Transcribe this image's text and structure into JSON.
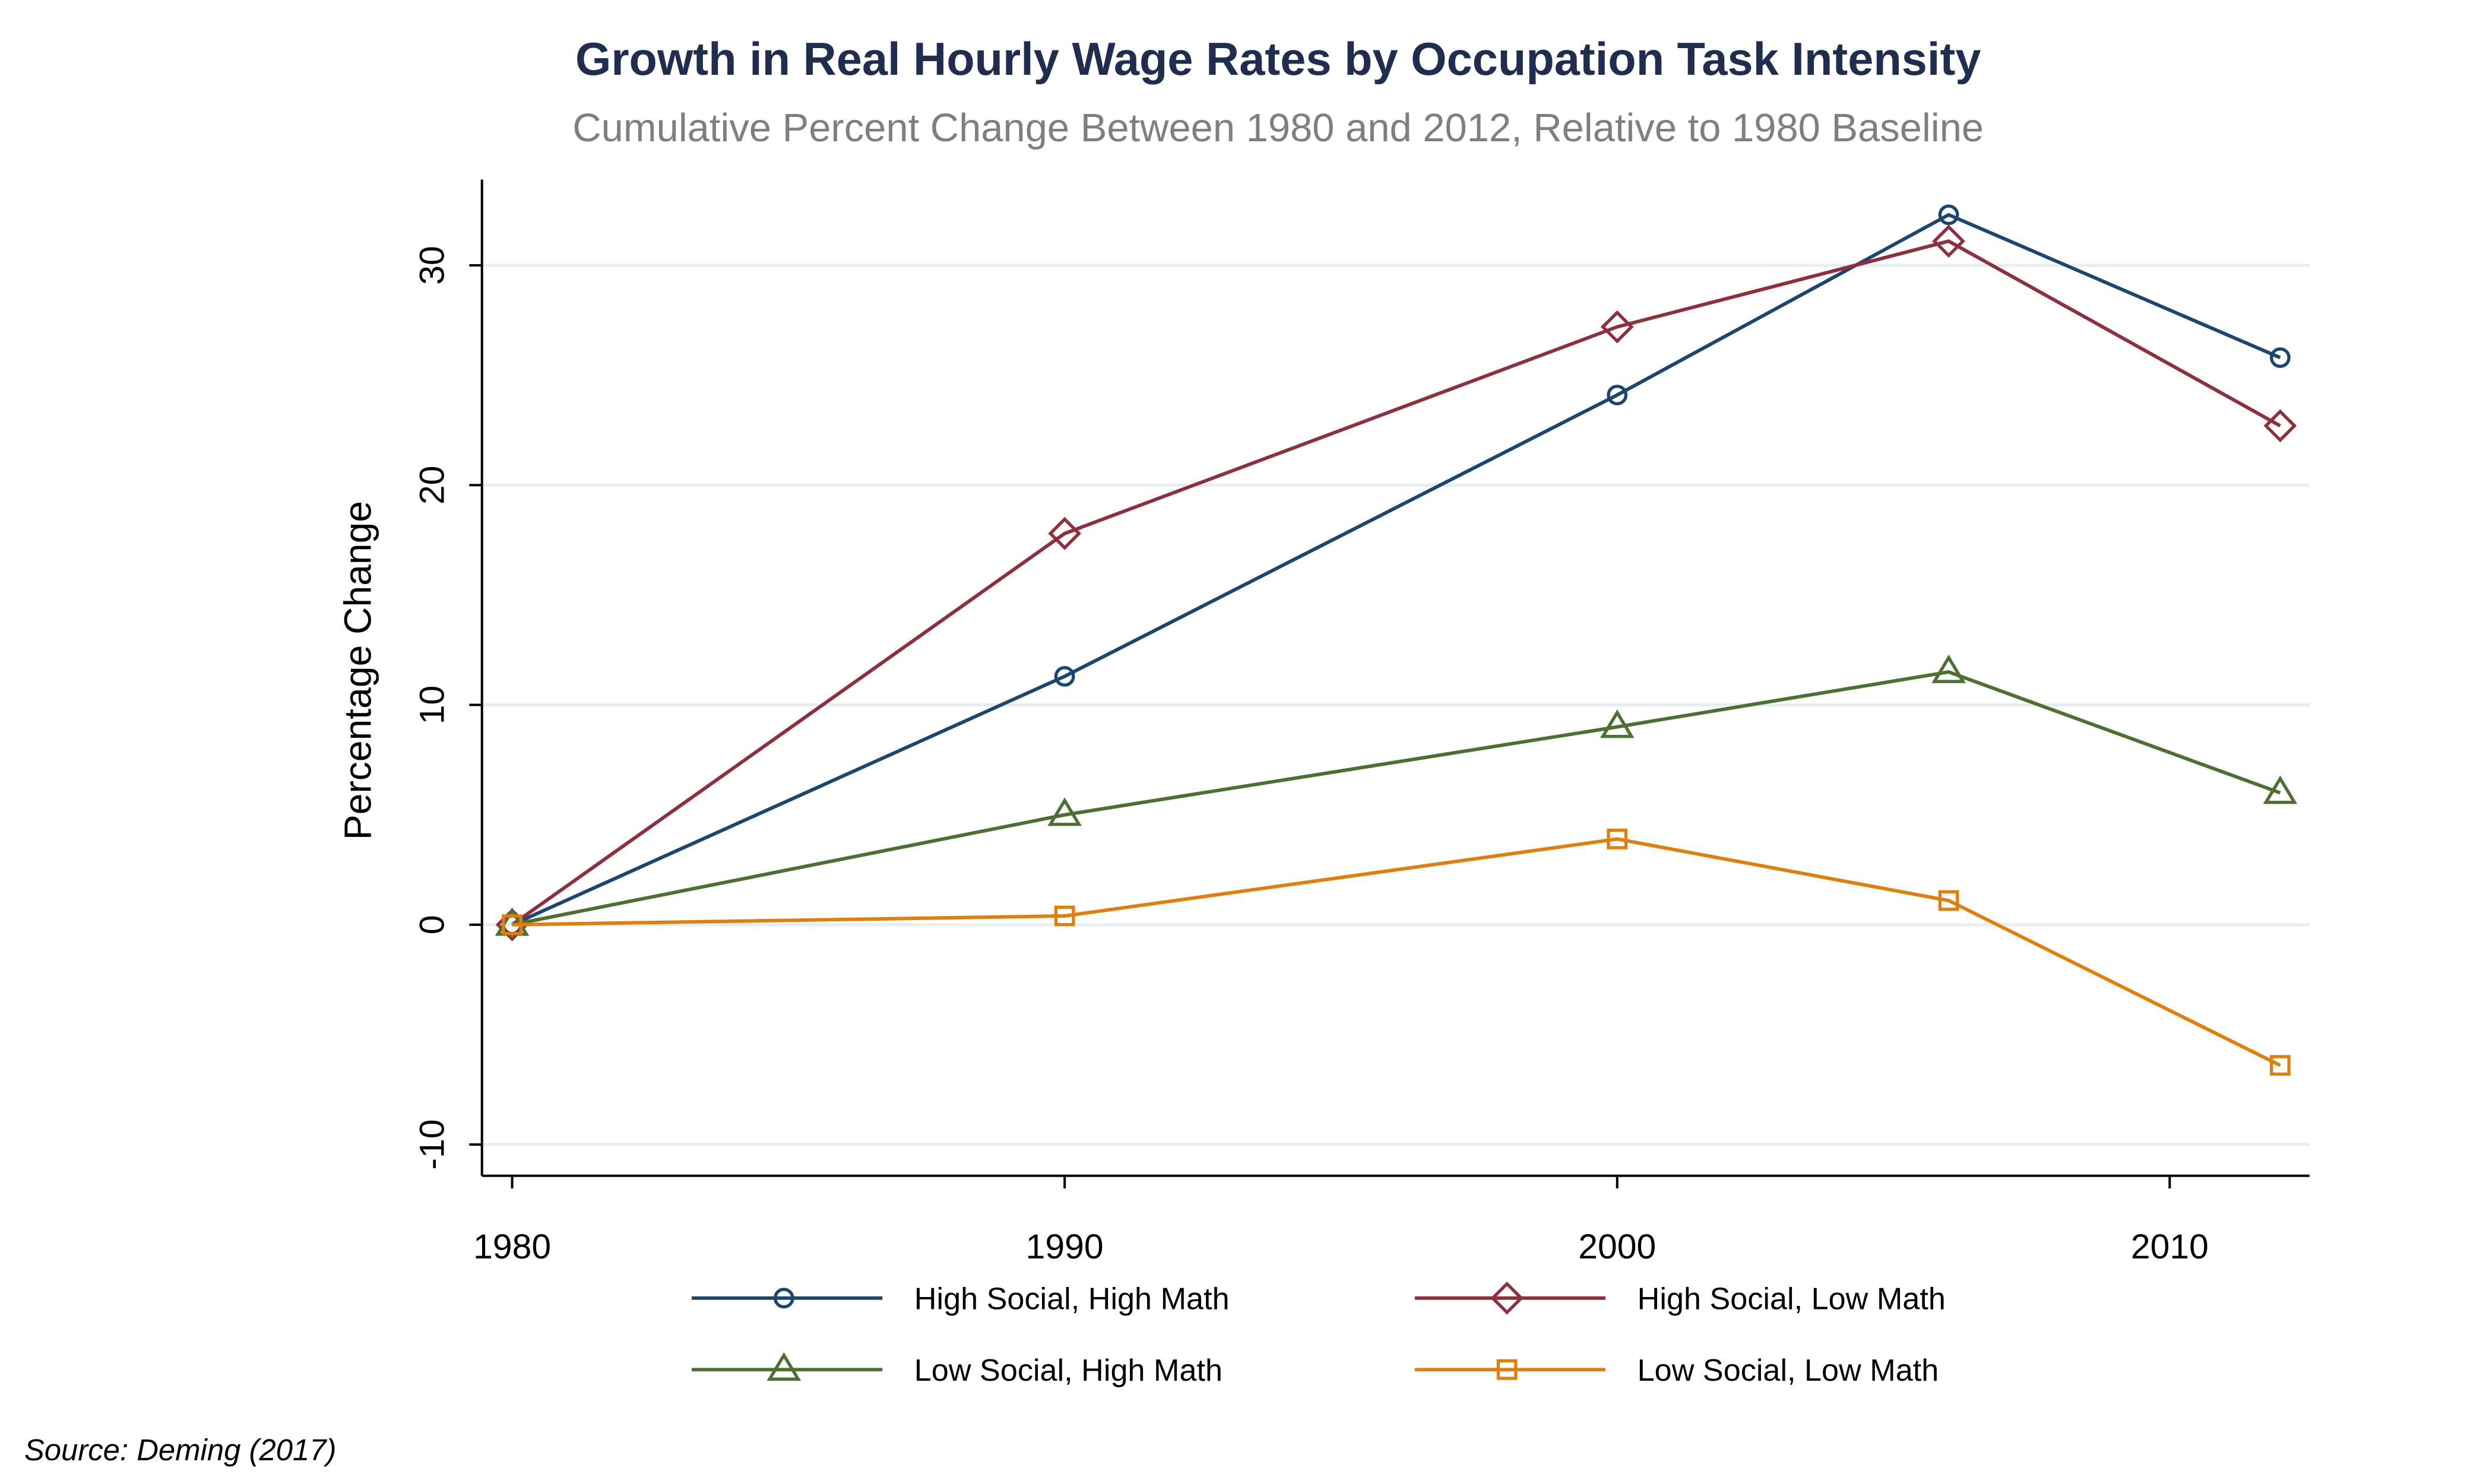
{
  "chart_data": {
    "type": "line",
    "title": "Growth in Real Hourly Wage Rates by Occupation Task Intensity",
    "subtitle": "Cumulative Percent Change Between 1980 and 2012, Relative to 1980 Baseline",
    "xlabel": "",
    "ylabel": "Percentage Change",
    "x": [
      1980,
      1990,
      2000,
      2006,
      2012
    ],
    "xticks": [
      1980,
      1990,
      2000,
      2010
    ],
    "yticks": [
      -10,
      0,
      10,
      20,
      30
    ],
    "xlim": [
      1979.4,
      2012.6
    ],
    "ylim": [
      -11.5,
      34
    ],
    "grid": true,
    "legend_position": "bottom",
    "series": [
      {
        "name": "High Social, High Math",
        "color": "#1a4670",
        "marker": "circle",
        "values": [
          0,
          11.3,
          24.1,
          32.3,
          25.8
        ]
      },
      {
        "name": "High Social, Low Math",
        "color": "#8f2f3b",
        "marker": "diamond",
        "values": [
          0,
          17.8,
          27.2,
          31.1,
          22.7
        ]
      },
      {
        "name": "Low Social, High Math",
        "color": "#4b7030",
        "marker": "triangle",
        "values": [
          0,
          5.0,
          9.0,
          11.5,
          6.0
        ]
      },
      {
        "name": "Low Social, Low Math",
        "color": "#e07f0b",
        "marker": "square",
        "values": [
          0,
          0.4,
          3.9,
          1.1,
          -6.4
        ]
      }
    ],
    "source": "Source: Deming (2017)"
  }
}
